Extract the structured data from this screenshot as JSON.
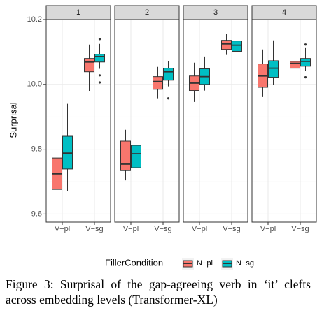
{
  "chart_data": {
    "type": "boxplot",
    "ylabel": "Surprisal",
    "ylim": [
      9.575,
      10.2
    ],
    "yticks": [
      9.6,
      9.8,
      {
        "value": 10,
        "label": "10.0"
      },
      10.2
    ],
    "grid": true,
    "categories": [
      "V−pl",
      "V−sg"
    ],
    "legend_title": "FillerCondition",
    "series": [
      {
        "name": "N−pl",
        "color": "#F8766D"
      },
      {
        "name": "N−sg",
        "color": "#00BFC4"
      }
    ],
    "facets": [
      {
        "label": "1",
        "boxes": [
          [
            {
              "min": 9.607,
              "q1": 9.676,
              "median": 9.724,
              "q3": 9.773,
              "max": 9.88
            },
            {
              "min": 9.978,
              "q1": 10.039,
              "median": 10.069,
              "q3": 10.08,
              "max": 10.123
            }
          ],
          [
            {
              "min": 9.67,
              "q1": 9.739,
              "median": 9.788,
              "q3": 9.84,
              "max": 9.94
            },
            {
              "min": 10.048,
              "q1": 10.069,
              "median": 10.086,
              "q3": 10.093,
              "max": 10.125,
              "outliers": [
                10.14,
                10.028,
                10.006
              ]
            }
          ]
        ]
      },
      {
        "label": "2",
        "boxes": [
          [
            {
              "min": 9.704,
              "q1": 9.734,
              "median": 9.754,
              "q3": 9.825,
              "max": 9.86
            },
            {
              "min": 9.955,
              "q1": 9.985,
              "median": 10.009,
              "q3": 10.024,
              "max": 10.054
            }
          ],
          [
            {
              "min": 9.691,
              "q1": 9.743,
              "median": 9.786,
              "q3": 9.812,
              "max": 9.892
            },
            {
              "min": 9.994,
              "q1": 10.013,
              "median": 10.039,
              "q3": 10.05,
              "max": 10.071,
              "outliers": [
                9.957
              ]
            }
          ]
        ]
      },
      {
        "label": "3",
        "boxes": [
          [
            {
              "min": 9.946,
              "q1": 9.981,
              "median": 10.004,
              "q3": 10.026,
              "max": 10.067
            },
            {
              "min": 10.091,
              "q1": 10.108,
              "median": 10.125,
              "q3": 10.136,
              "max": 10.156
            }
          ],
          [
            {
              "min": 9.981,
              "q1": 10.0,
              "median": 10.024,
              "q3": 10.048,
              "max": 10.086
            },
            {
              "min": 10.084,
              "q1": 10.102,
              "median": 10.121,
              "q3": 10.134,
              "max": 10.168
            }
          ]
        ]
      },
      {
        "label": "4",
        "boxes": [
          [
            {
              "min": 9.961,
              "q1": 9.991,
              "median": 10.026,
              "q3": 10.063,
              "max": 10.108
            },
            {
              "min": 10.032,
              "q1": 10.05,
              "median": 10.065,
              "q3": 10.071,
              "max": 10.097
            }
          ],
          [
            {
              "min": 9.998,
              "q1": 10.022,
              "median": 10.05,
              "q3": 10.073,
              "max": 10.136
            },
            {
              "min": 10.041,
              "q1": 10.056,
              "median": 10.071,
              "q3": 10.08,
              "max": 10.112,
              "outliers": [
                10.123,
                10.022
              ]
            }
          ]
        ]
      }
    ]
  },
  "caption": "Figure 3: Surprisal of the gap-agreeing verb in ‘it’ clefts across embedding levels (Transformer-XL)"
}
